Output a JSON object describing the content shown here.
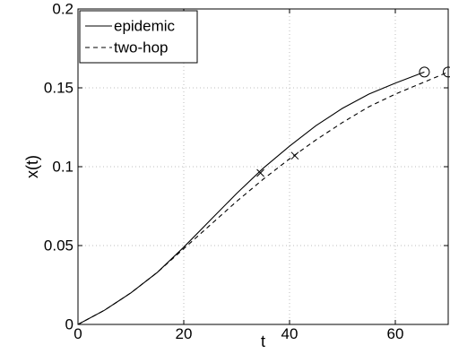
{
  "chart_data": {
    "type": "line",
    "xlabel": "t",
    "ylabel": "x(t)",
    "xlim": [
      0,
      70
    ],
    "ylim": [
      0,
      0.2
    ],
    "x_ticks": [
      0,
      20,
      40,
      60
    ],
    "x_tick_labels": [
      "0",
      "20",
      "40",
      "60"
    ],
    "y_ticks": [
      0,
      0.05,
      0.1,
      0.15,
      0.2
    ],
    "y_tick_labels": [
      "0",
      "0.05",
      "0.1",
      "0.15",
      "0.2"
    ],
    "grid": true,
    "legend_position": "top-left",
    "series": [
      {
        "name": "epidemic",
        "style": "solid",
        "x": [
          0,
          5,
          10,
          15,
          20,
          25,
          30,
          35,
          40,
          45,
          50,
          55,
          60,
          65.5
        ],
        "y": [
          0,
          0.009,
          0.02,
          0.033,
          0.049,
          0.066,
          0.083,
          0.099,
          0.113,
          0.126,
          0.137,
          0.146,
          0.153,
          0.16
        ],
        "markers": [
          {
            "x": 34.5,
            "y": 0.096,
            "symbol": "x"
          },
          {
            "x": 65.5,
            "y": 0.16,
            "symbol": "o"
          }
        ]
      },
      {
        "name": "two-hop",
        "style": "dashed",
        "x": [
          0,
          5,
          10,
          15,
          20,
          25,
          30,
          35,
          40,
          45,
          50,
          55,
          60,
          65,
          70
        ],
        "y": [
          0,
          0.009,
          0.02,
          0.033,
          0.048,
          0.063,
          0.078,
          0.092,
          0.105,
          0.117,
          0.128,
          0.138,
          0.146,
          0.153,
          0.16
        ],
        "markers": [
          {
            "x": 41,
            "y": 0.107,
            "symbol": "x"
          },
          {
            "x": 70,
            "y": 0.16,
            "symbol": "o"
          }
        ]
      }
    ]
  }
}
